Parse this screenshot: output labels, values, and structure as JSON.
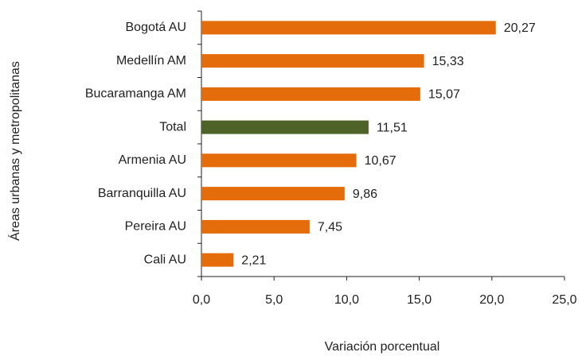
{
  "chart_data": {
    "type": "barh",
    "categories": [
      "Bogotá AU",
      "Medellín AM",
      "Bucaramanga AM",
      "Total",
      "Armenia AU",
      "Barranquilla AU",
      "Pereira AU",
      "Cali AU"
    ],
    "values": [
      20.27,
      15.33,
      15.07,
      11.51,
      10.67,
      9.86,
      7.45,
      2.21
    ],
    "value_labels": [
      "20,27",
      "15,33",
      "15,07",
      "11,51",
      "10,67",
      "9,86",
      "7,45",
      "2,21"
    ],
    "colors": [
      "#e46c0a",
      "#e46c0a",
      "#e46c0a",
      "#4f6228",
      "#e46c0a",
      "#e46c0a",
      "#e46c0a",
      "#e46c0a"
    ],
    "xlim": [
      0,
      25
    ],
    "xticks": [
      {
        "value": 0,
        "label": "0,0"
      },
      {
        "value": 5,
        "label": "5,0"
      },
      {
        "value": 10,
        "label": "10,0"
      },
      {
        "value": 15,
        "label": "15,0"
      },
      {
        "value": 20,
        "label": "20,0"
      },
      {
        "value": 25,
        "label": "25,0"
      }
    ],
    "xlabel": "Variación porcentual",
    "ylabel": "Áreas urbanas y metropolitanas"
  }
}
